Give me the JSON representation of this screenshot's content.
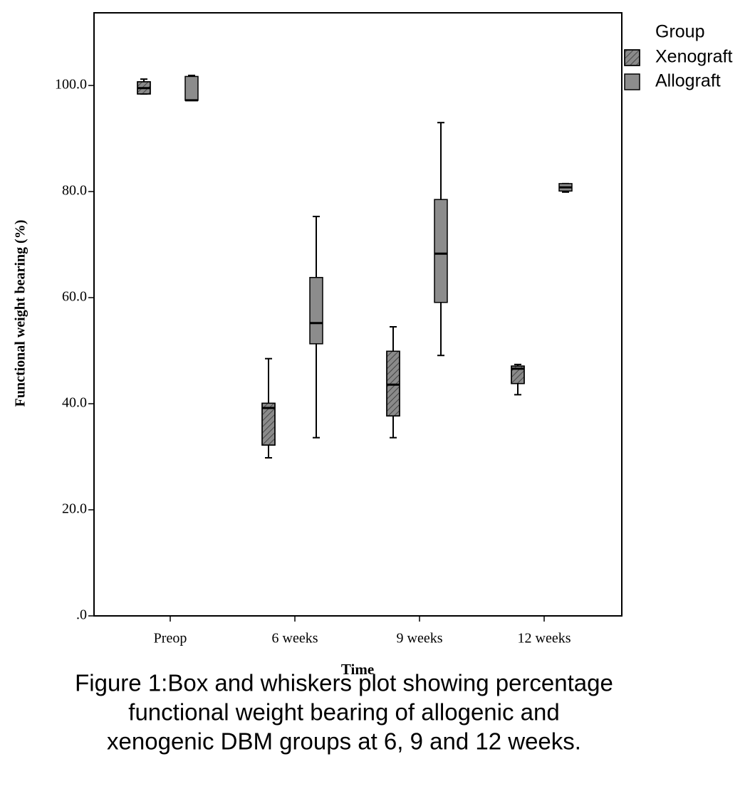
{
  "chart_data": {
    "type": "box",
    "y_label": "Functional weight bearing (%)",
    "x_label": "Time",
    "categories": [
      "Preop",
      "6 weeks",
      "9 weeks",
      "12 weeks"
    ],
    "legend_title": "Group",
    "legend_position": "top-right-outside",
    "series": [
      {
        "name": "Xenograft",
        "color": "#8a8a8a",
        "pattern": "hatch",
        "min": [
          98.4,
          29.8,
          33.6,
          41.7
        ],
        "q1": [
          98.4,
          32.2,
          37.7,
          43.8
        ],
        "median": [
          99.5,
          39.2,
          43.6,
          46.6
        ],
        "q3": [
          100.7,
          40.1,
          49.9,
          47.1
        ],
        "max": [
          101.2,
          48.5,
          54.5,
          47.4
        ]
      },
      {
        "name": "Allograft",
        "color": "#8c8c8c",
        "pattern": "solid",
        "min": [
          97.2,
          33.6,
          49.1,
          79.9
        ],
        "q1": [
          97.2,
          51.3,
          59.1,
          80.1
        ],
        "median": [
          97.2,
          55.2,
          68.3,
          80.8
        ],
        "q3": [
          101.7,
          63.8,
          78.5,
          81.5
        ],
        "max": [
          101.9,
          75.3,
          93.0,
          81.5
        ]
      }
    ],
    "ylim": [
      0,
      113.7
    ],
    "yticks": [
      {
        "value": 0,
        "label": ".0"
      },
      {
        "value": 20,
        "label": "20.0"
      },
      {
        "value": 40,
        "label": "40.0"
      },
      {
        "value": 60,
        "label": "60.0"
      },
      {
        "value": 80,
        "label": "80.0"
      },
      {
        "value": 100,
        "label": "100.0"
      }
    ],
    "caption": [
      "Figure 1:Box and whiskers plot showing percentage",
      "functional weight bearing of allogenic and",
      "xenogenic DBM groups at 6, 9 and 12 weeks."
    ]
  }
}
